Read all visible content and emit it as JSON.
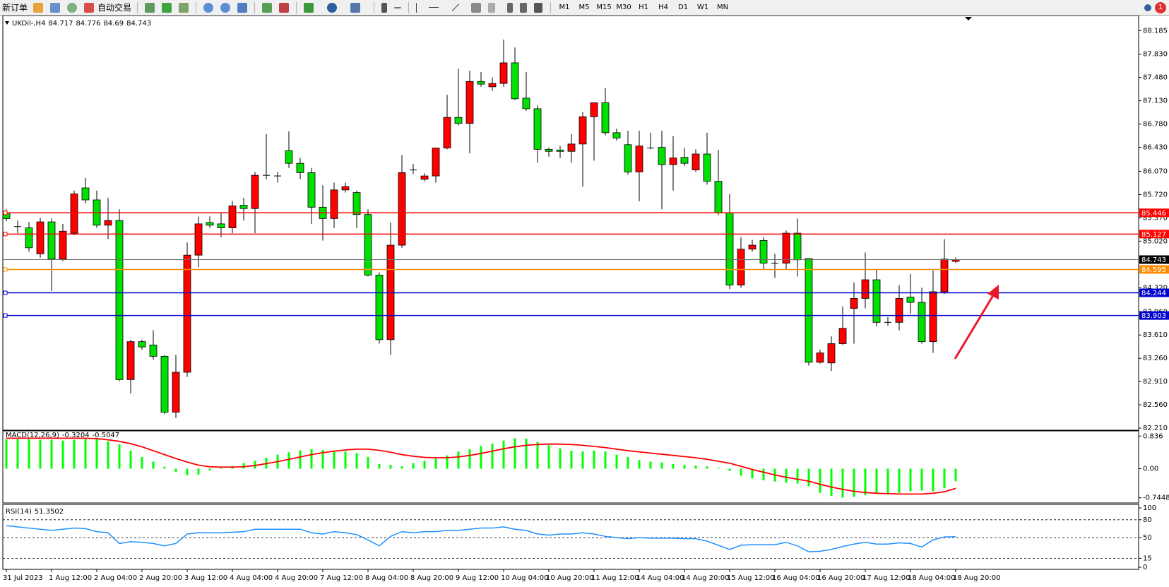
{
  "toolbar": {
    "new_order": "新订单",
    "auto_trading": "自动交易",
    "timeframes": [
      "M1",
      "M5",
      "M15",
      "M30",
      "H1",
      "H4",
      "D1",
      "W1",
      "MN"
    ],
    "badge": 1
  },
  "chart_data": [
    {
      "type": "candlestick",
      "title": "UKOil-,H4",
      "categories": [
        "31 Jul 2023",
        null,
        null,
        null,
        "1 Aug 12:00",
        null,
        null,
        null,
        "2 Aug 04:00",
        null,
        null,
        null,
        "2 Aug 20:00",
        null,
        null,
        null,
        "3 Aug 12:00",
        null,
        null,
        null,
        "4 Aug 04:00",
        null,
        null,
        null,
        "4 Aug 20:00",
        null,
        null,
        null,
        "7 Aug 12:00",
        null,
        null,
        null,
        "8 Aug 04:00",
        null,
        null,
        null,
        "8 Aug 20:00",
        null,
        null,
        null,
        "9 Aug 12:00",
        null,
        null,
        null,
        "10 Aug 04:00",
        null,
        null,
        null,
        "10 Aug 20:00",
        null,
        null,
        null,
        "11 Aug 12:00",
        null,
        null,
        null,
        "14 Aug 04:00",
        null,
        null,
        null,
        "14 Aug 20:00",
        null,
        null,
        null,
        "15 Aug 12:00",
        null,
        null,
        null,
        "16 Aug 04:00",
        null,
        null,
        null,
        "16 Aug 20:00",
        null,
        null,
        null,
        "17 Aug 12:00",
        null,
        null,
        null,
        "18 Aug 04:00",
        null,
        null,
        null,
        "18 Aug 20:00"
      ],
      "open": [
        85.45,
        85.24,
        85.22,
        84.83,
        85.31,
        84.75,
        85.14,
        85.82,
        85.64,
        85.26,
        85.33,
        82.94,
        83.51,
        83.46,
        83.29,
        82.45,
        83.05,
        84.81,
        85.3,
        85.28,
        85.22,
        85.56,
        85.51,
        86.01,
        86.0,
        86.38,
        86.19,
        86.05,
        85.53,
        85.36,
        85.79,
        85.75,
        85.42,
        84.51,
        83.54,
        84.96,
        86.09,
        85.95,
        86.0,
        86.42,
        86.88,
        86.79,
        87.42,
        87.34,
        87.39,
        87.7,
        87.17,
        87.01,
        86.4,
        86.39,
        86.37,
        86.48,
        86.89,
        87.1,
        86.65,
        86.47,
        86.06,
        86.42,
        86.43,
        86.17,
        86.28,
        86.09,
        86.33,
        85.92,
        85.45,
        84.36,
        84.9,
        85.03,
        84.69,
        84.69,
        85.14,
        84.76,
        83.2,
        83.19,
        83.48,
        84.01,
        84.16,
        84.44,
        83.8,
        83.8,
        84.18,
        84.1,
        83.51,
        84.26,
        84.717
      ],
      "high": [
        85.5,
        85.33,
        85.31,
        85.37,
        85.36,
        85.28,
        85.78,
        85.97,
        85.78,
        85.67,
        85.5,
        83.54,
        83.54,
        83.68,
        83.31,
        83.31,
        85.0,
        85.39,
        85.39,
        85.45,
        85.62,
        85.67,
        86.06,
        86.63,
        86.06,
        86.67,
        86.27,
        86.12,
        85.86,
        85.9,
        85.9,
        85.78,
        85.5,
        84.55,
        85.3,
        86.31,
        86.18,
        86.04,
        86.42,
        87.22,
        87.61,
        87.58,
        87.56,
        87.48,
        88.05,
        87.93,
        87.56,
        87.06,
        86.43,
        86.45,
        86.63,
        86.96,
        87.1,
        87.32,
        86.71,
        86.68,
        86.68,
        86.65,
        86.68,
        86.6,
        86.42,
        86.4,
        86.65,
        86.39,
        85.73,
        85.08,
        85.04,
        85.08,
        84.83,
        85.18,
        85.36,
        84.76,
        83.39,
        83.59,
        84.04,
        84.4,
        84.85,
        84.6,
        83.88,
        84.36,
        84.53,
        84.32,
        84.58,
        85.05,
        84.776
      ],
      "low": [
        85.32,
        85.14,
        84.86,
        84.77,
        84.27,
        84.72,
        85.11,
        85.59,
        85.22,
        85.05,
        82.92,
        82.73,
        83.39,
        83.24,
        82.42,
        82.36,
        82.98,
        84.63,
        85.22,
        85.08,
        85.14,
        85.33,
        85.14,
        85.95,
        85.9,
        86.12,
        85.95,
        85.28,
        85.03,
        85.22,
        85.75,
        85.22,
        84.49,
        83.48,
        83.31,
        84.92,
        86.03,
        85.92,
        85.9,
        86.4,
        86.76,
        86.34,
        87.34,
        87.28,
        87.34,
        87.14,
        86.98,
        86.2,
        86.29,
        86.27,
        86.2,
        85.84,
        86.23,
        86.61,
        86.53,
        86.02,
        85.62,
        86.4,
        85.5,
        85.78,
        86.15,
        86.06,
        85.87,
        85.41,
        84.3,
        84.32,
        84.86,
        84.6,
        84.47,
        84.6,
        84.49,
        83.15,
        83.18,
        83.07,
        83.46,
        83.48,
        84.01,
        83.74,
        83.75,
        83.68,
        83.93,
        83.48,
        83.34,
        84.23,
        84.69
      ],
      "close": [
        85.36,
        85.24,
        84.92,
        85.31,
        84.75,
        85.17,
        85.73,
        85.64,
        85.26,
        85.33,
        82.94,
        83.51,
        83.43,
        83.29,
        82.45,
        83.05,
        84.81,
        85.28,
        85.26,
        85.22,
        85.55,
        85.51,
        86.01,
        86.01,
        86.0,
        86.19,
        86.05,
        85.53,
        85.36,
        85.79,
        85.84,
        85.42,
        84.51,
        83.54,
        84.96,
        86.05,
        86.09,
        86.0,
        86.42,
        86.88,
        86.79,
        87.42,
        87.38,
        87.39,
        87.7,
        87.16,
        87.01,
        86.4,
        86.37,
        86.37,
        86.48,
        86.89,
        87.1,
        86.65,
        86.57,
        86.06,
        86.45,
        86.42,
        86.17,
        86.27,
        86.19,
        86.33,
        85.92,
        85.45,
        84.36,
        84.9,
        84.96,
        84.69,
        84.69,
        85.14,
        84.74,
        83.2,
        83.34,
        83.48,
        83.71,
        84.16,
        84.44,
        83.8,
        83.8,
        84.16,
        84.1,
        83.51,
        84.26,
        84.75,
        84.743
      ],
      "up_color": "#ff0000",
      "down_color": "#00e000",
      "ylim": [
        82.19,
        88.4
      ],
      "yticks": [
        88.185,
        {
          "value": 87.83,
          "label": "87.830"
        },
        {
          "value": 87.48,
          "label": "87.480"
        },
        {
          "value": 87.13,
          "label": "87.130"
        },
        {
          "value": 86.78,
          "label": "86.780"
        },
        {
          "value": 86.43,
          "label": "86.430"
        },
        {
          "value": 86.07,
          "label": "86.070"
        },
        {
          "value": 85.72,
          "label": "85.720"
        },
        {
          "value": 85.37,
          "label": "85.370"
        },
        {
          "value": 85.02,
          "label": "85.020"
        },
        {
          "value": 84.32,
          "label": "84.320"
        },
        {
          "value": 83.96,
          "label": "83.960"
        },
        {
          "value": 83.61,
          "label": "83.610"
        },
        {
          "value": 83.26,
          "label": "83.260"
        },
        {
          "value": 82.91,
          "label": "82.910"
        },
        {
          "value": 82.56,
          "label": "82.560"
        },
        {
          "value": 82.21,
          "label": "82.210"
        }
      ],
      "hlines": [
        {
          "value": 85.446,
          "color": "#ff0000"
        },
        {
          "value": 85.127,
          "color": "#ff0000"
        },
        {
          "value": 84.595,
          "color": "#ff8c00"
        },
        {
          "value": 84.244,
          "color": "#0000cd"
        },
        {
          "value": 83.903,
          "color": "#0000cd"
        }
      ]
    },
    {
      "type": "macd",
      "title": "MACD(12,26,9)",
      "histogram": {
        "color": "#00ff00",
        "values": [
          0.75,
          0.76,
          0.75,
          0.74,
          0.74,
          0.72,
          0.74,
          0.76,
          0.76,
          0.7,
          0.62,
          0.46,
          0.3,
          0.18,
          0.05,
          -0.08,
          -0.17,
          -0.15,
          -0.05,
          0.02,
          0.07,
          0.14,
          0.2,
          0.28,
          0.36,
          0.42,
          0.47,
          0.5,
          0.48,
          0.45,
          0.44,
          0.4,
          0.3,
          0.12,
          0.1,
          0.06,
          0.14,
          0.2,
          0.26,
          0.34,
          0.44,
          0.5,
          0.58,
          0.64,
          0.72,
          0.78,
          0.77,
          0.68,
          0.6,
          0.52,
          0.46,
          0.44,
          0.46,
          0.44,
          0.36,
          0.3,
          0.22,
          0.18,
          0.16,
          0.12,
          0.1,
          0.08,
          0.06,
          0.02,
          -0.06,
          -0.18,
          -0.25,
          -0.3,
          -0.33,
          -0.36,
          -0.38,
          -0.45,
          -0.62,
          -0.7,
          -0.74,
          -0.72,
          -0.68,
          -0.62,
          -0.64,
          -0.62,
          -0.58,
          -0.56,
          -0.58,
          -0.5,
          -0.3204
        ]
      },
      "signal": {
        "color": "#ff0000",
        "values": [
          0.78,
          0.78,
          0.78,
          0.78,
          0.78,
          0.78,
          0.78,
          0.78,
          0.77,
          0.74,
          0.7,
          0.64,
          0.56,
          0.46,
          0.36,
          0.26,
          0.17,
          0.09,
          0.05,
          0.04,
          0.04,
          0.05,
          0.08,
          0.13,
          0.18,
          0.24,
          0.3,
          0.36,
          0.41,
          0.45,
          0.48,
          0.5,
          0.5,
          0.47,
          0.42,
          0.36,
          0.32,
          0.29,
          0.28,
          0.28,
          0.3,
          0.34,
          0.39,
          0.45,
          0.51,
          0.56,
          0.6,
          0.62,
          0.63,
          0.63,
          0.62,
          0.6,
          0.57,
          0.54,
          0.5,
          0.46,
          0.43,
          0.4,
          0.37,
          0.34,
          0.31,
          0.28,
          0.24,
          0.19,
          0.14,
          0.06,
          -0.02,
          -0.09,
          -0.16,
          -0.22,
          -0.27,
          -0.32,
          -0.4,
          -0.47,
          -0.53,
          -0.58,
          -0.61,
          -0.63,
          -0.64,
          -0.65,
          -0.65,
          -0.65,
          -0.63,
          -0.59,
          -0.5047
        ]
      },
      "ylim": [
        -0.86,
        0.95
      ],
      "yticks": [
        0.836,
        {
          "value": 0,
          "label": "0.00"
        },
        -0.7448
      ]
    },
    {
      "type": "line",
      "title": "RSI(14)",
      "color": "#1e90ff",
      "values": [
        70,
        68,
        66,
        64,
        62,
        64,
        66,
        65,
        60,
        58,
        40,
        43,
        42,
        40,
        36,
        40,
        56,
        58,
        58,
        58,
        59,
        60,
        64,
        64,
        64,
        64,
        64,
        58,
        56,
        60,
        58,
        55,
        46,
        36,
        52,
        60,
        58,
        60,
        60,
        62,
        62,
        64,
        66,
        66,
        68,
        64,
        62,
        56,
        54,
        56,
        56,
        58,
        56,
        52,
        50,
        48,
        50,
        49,
        49,
        49,
        48,
        48,
        44,
        37,
        30,
        37,
        38,
        38,
        38,
        42,
        36,
        26,
        27,
        30,
        35,
        39,
        42,
        39,
        39,
        41,
        40,
        34,
        46,
        51,
        51.3502
      ],
      "ylim": [
        0,
        100
      ],
      "yticks": [
        100,
        80,
        50,
        15,
        0
      ],
      "grid": "dashed"
    }
  ]
}
